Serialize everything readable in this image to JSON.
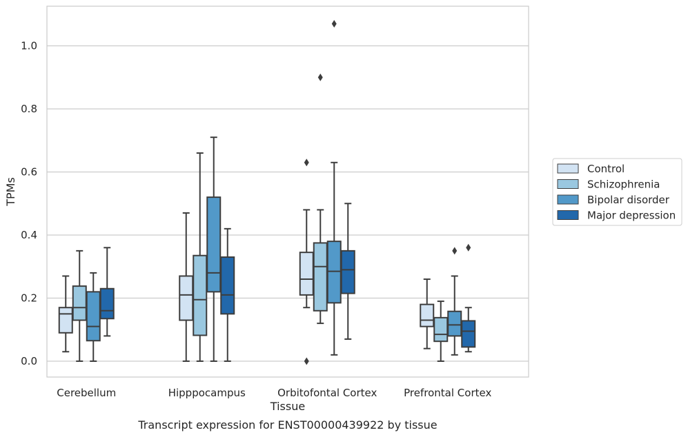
{
  "caption": "Transcript expression for ENST00000439922 by tissue",
  "chart_data": {
    "type": "box",
    "xlabel": "Tissue",
    "ylabel": "TPMs",
    "ylim": [
      -0.05,
      1.13
    ],
    "yticks": [
      0.0,
      0.2,
      0.4,
      0.6,
      0.8,
      1.0
    ],
    "ytick_labels": [
      "0.0",
      "0.2",
      "0.4",
      "0.6",
      "0.8",
      "1.0"
    ],
    "grid": "horizontal",
    "legend_position": "right",
    "categories": [
      "Cerebellum",
      "Hipppocampus",
      "Orbitofontal Cortex",
      "Prefrontal Cortex"
    ],
    "series": [
      {
        "name": "Control",
        "color": "#d2e3f3",
        "boxes": [
          {
            "whislo": 0.03,
            "q1": 0.09,
            "med": 0.15,
            "q3": 0.17,
            "whishi": 0.27,
            "fliers": []
          },
          {
            "whislo": 0.0,
            "q1": 0.13,
            "med": 0.21,
            "q3": 0.27,
            "whishi": 0.47,
            "fliers": []
          },
          {
            "whislo": 0.17,
            "q1": 0.21,
            "med": 0.26,
            "q3": 0.345,
            "whishi": 0.48,
            "fliers": [
              0.63,
              0.0
            ]
          },
          {
            "whislo": 0.04,
            "q1": 0.11,
            "med": 0.13,
            "q3": 0.18,
            "whishi": 0.26,
            "fliers": []
          }
        ]
      },
      {
        "name": "Schizophrenia",
        "color": "#9ac8e0",
        "boxes": [
          {
            "whislo": 0.0,
            "q1": 0.13,
            "med": 0.17,
            "q3": 0.238,
            "whishi": 0.35,
            "fliers": []
          },
          {
            "whislo": 0.0,
            "q1": 0.082,
            "med": 0.195,
            "q3": 0.335,
            "whishi": 0.66,
            "fliers": []
          },
          {
            "whislo": 0.12,
            "q1": 0.16,
            "med": 0.3,
            "q3": 0.375,
            "whishi": 0.48,
            "fliers": [
              0.9
            ]
          },
          {
            "whislo": 0.0,
            "q1": 0.063,
            "med": 0.085,
            "q3": 0.138,
            "whishi": 0.19,
            "fliers": []
          }
        ]
      },
      {
        "name": "Bipolar disorder",
        "color": "#5299c9",
        "boxes": [
          {
            "whislo": 0.0,
            "q1": 0.065,
            "med": 0.11,
            "q3": 0.22,
            "whishi": 0.28,
            "fliers": []
          },
          {
            "whislo": 0.0,
            "q1": 0.22,
            "med": 0.28,
            "q3": 0.52,
            "whishi": 0.71,
            "fliers": []
          },
          {
            "whislo": 0.02,
            "q1": 0.185,
            "med": 0.285,
            "q3": 0.38,
            "whishi": 0.63,
            "fliers": [
              1.07
            ]
          },
          {
            "whislo": 0.02,
            "q1": 0.08,
            "med": 0.115,
            "q3": 0.158,
            "whishi": 0.27,
            "fliers": [
              0.35
            ]
          }
        ]
      },
      {
        "name": "Major depression",
        "color": "#2268ab",
        "boxes": [
          {
            "whislo": 0.08,
            "q1": 0.135,
            "med": 0.16,
            "q3": 0.23,
            "whishi": 0.36,
            "fliers": []
          },
          {
            "whislo": 0.0,
            "q1": 0.15,
            "med": 0.21,
            "q3": 0.33,
            "whishi": 0.42,
            "fliers": []
          },
          {
            "whislo": 0.07,
            "q1": 0.215,
            "med": 0.29,
            "q3": 0.35,
            "whishi": 0.5,
            "fliers": []
          },
          {
            "whislo": 0.03,
            "q1": 0.045,
            "med": 0.095,
            "q3": 0.128,
            "whishi": 0.17,
            "fliers": [
              0.36
            ]
          }
        ]
      }
    ]
  }
}
